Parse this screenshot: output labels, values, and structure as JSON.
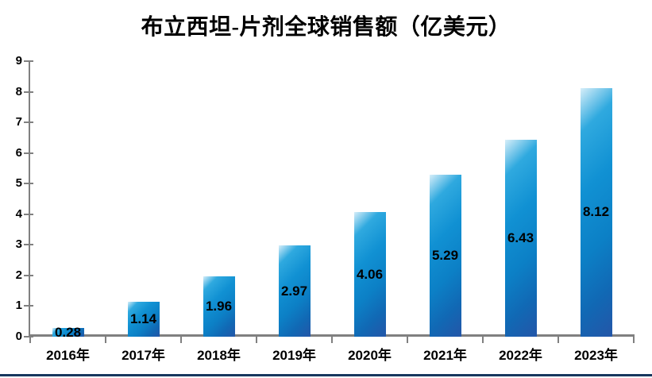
{
  "title": "布立西坦-片剂全球销售额（亿美元）",
  "chart_data": {
    "type": "bar",
    "title": "布立西坦-片剂全球销售额（亿美元）",
    "categories": [
      "2016年",
      "2017年",
      "2018年",
      "2019年",
      "2020年",
      "2021年",
      "2022年",
      "2023年"
    ],
    "values": [
      0.28,
      1.14,
      1.96,
      2.97,
      4.06,
      5.29,
      6.43,
      8.12
    ],
    "data_labels": [
      "0.28",
      "1.14",
      "1.96",
      "2.97",
      "4.06",
      "5.29",
      "6.43",
      "8.12"
    ],
    "yticks": [
      "0",
      "1",
      "2",
      "3",
      "4",
      "5",
      "6",
      "7",
      "8",
      "9"
    ],
    "ylim": [
      0,
      9
    ],
    "xlabel": "",
    "ylabel": "",
    "grid": false,
    "legend": false,
    "bar_gradient": [
      "#d6eef9",
      "#2fa9df",
      "#1191d3",
      "#0c80c6",
      "#2456a8"
    ],
    "axis_color": "#808080",
    "text_color": "#000000",
    "bottom_border_color": "#17375E"
  }
}
